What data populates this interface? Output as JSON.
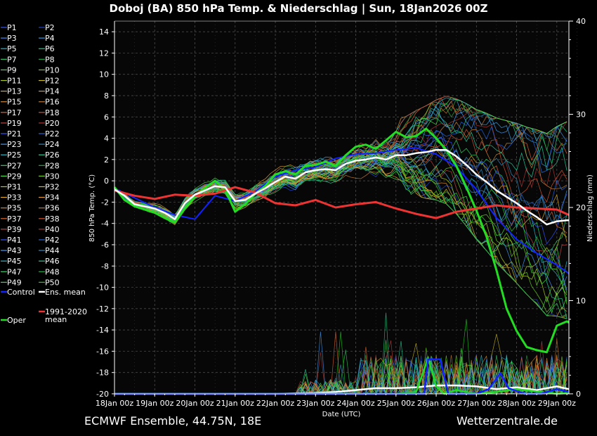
{
  "chart_data": {
    "type": "line",
    "title": "Doboj  (BA)  850 hPa Temp. & Niederschlag | Sun, 18Jan2026 00Z",
    "xlabel": "Date (UTC)",
    "ylabel": "850 hPa Temp. (°C)",
    "y2label": "Niederschlag (mm)",
    "ylim": [
      -20,
      15
    ],
    "y2lim": [
      0,
      40
    ],
    "yticks": [
      -20,
      -18,
      -16,
      -14,
      -12,
      -10,
      -8,
      -6,
      -4,
      -2,
      0,
      2,
      4,
      6,
      8,
      10,
      12,
      14
    ],
    "y2ticks": [
      0,
      10,
      20,
      30,
      40
    ],
    "xlim": [
      0,
      11.3
    ],
    "xticks": [
      {
        "x": 0,
        "label": "18Jan 00z"
      },
      {
        "x": 1,
        "label": "19Jan 00z"
      },
      {
        "x": 2,
        "label": "20Jan 00z"
      },
      {
        "x": 3,
        "label": "21Jan 00z"
      },
      {
        "x": 4,
        "label": "22Jan 00z"
      },
      {
        "x": 5,
        "label": "23Jan 00z"
      },
      {
        "x": 6,
        "label": "24Jan 00z"
      },
      {
        "x": 7,
        "label": "25Jan 00z"
      },
      {
        "x": 8,
        "label": "26Jan 00z"
      },
      {
        "x": 9,
        "label": "27Jan 00z"
      },
      {
        "x": 10,
        "label": "28Jan 00z"
      },
      {
        "x": 11,
        "label": "29Jan 00z"
      }
    ],
    "grid": true,
    "legend_position": "left",
    "legend": [
      {
        "name": "P1",
        "color": "#3355ff"
      },
      {
        "name": "P2",
        "color": "#2244cc"
      },
      {
        "name": "P3",
        "color": "#4488ee"
      },
      {
        "name": "P4",
        "color": "#3399dd"
      },
      {
        "name": "P5",
        "color": "#22bbcc"
      },
      {
        "name": "P6",
        "color": "#22cc88"
      },
      {
        "name": "P7",
        "color": "#33cc66"
      },
      {
        "name": "P8",
        "color": "#22aa44"
      },
      {
        "name": "P9",
        "color": "#44dd44"
      },
      {
        "name": "P10",
        "color": "#66cc22"
      },
      {
        "name": "P11",
        "color": "#aacc22"
      },
      {
        "name": "P12",
        "color": "#ccbb22"
      },
      {
        "name": "P13",
        "color": "#ddaa22"
      },
      {
        "name": "P14",
        "color": "#dd9933"
      },
      {
        "name": "P15",
        "color": "#cc8833"
      },
      {
        "name": "P16",
        "color": "#bb7733"
      },
      {
        "name": "P17",
        "color": "#dd6633"
      },
      {
        "name": "P18",
        "color": "#cc5533"
      },
      {
        "name": "P19",
        "color": "#bb4444"
      },
      {
        "name": "P20",
        "color": "#aa3333"
      },
      {
        "name": "P21",
        "color": "#3355ff"
      },
      {
        "name": "P22",
        "color": "#2266dd"
      },
      {
        "name": "P23",
        "color": "#4499ee"
      },
      {
        "name": "P24",
        "color": "#3388bb"
      },
      {
        "name": "P25",
        "color": "#22bbcc"
      },
      {
        "name": "P26",
        "color": "#22cc99"
      },
      {
        "name": "P27",
        "color": "#33cc66"
      },
      {
        "name": "P28",
        "color": "#22aa44"
      },
      {
        "name": "P29",
        "color": "#44dd44"
      },
      {
        "name": "P30",
        "color": "#66cc22"
      },
      {
        "name": "P31",
        "color": "#aacc22"
      },
      {
        "name": "P32",
        "color": "#ccbb22"
      },
      {
        "name": "P33",
        "color": "#ddaa22"
      },
      {
        "name": "P34",
        "color": "#dd9933"
      },
      {
        "name": "P35",
        "color": "#cc8833"
      },
      {
        "name": "P36",
        "color": "#bb7733"
      },
      {
        "name": "P37",
        "color": "#dd6633"
      },
      {
        "name": "P38",
        "color": "#cc5533"
      },
      {
        "name": "P39",
        "color": "#bb4444"
      },
      {
        "name": "P40",
        "color": "#aa3333"
      },
      {
        "name": "P41",
        "color": "#3355ff"
      },
      {
        "name": "P42",
        "color": "#2266dd"
      },
      {
        "name": "P43",
        "color": "#4499ee"
      },
      {
        "name": "P44",
        "color": "#3388bb"
      },
      {
        "name": "P45",
        "color": "#22bbcc"
      },
      {
        "name": "P46",
        "color": "#22cc99"
      },
      {
        "name": "P47",
        "color": "#33cc66"
      },
      {
        "name": "P48",
        "color": "#22aa44"
      },
      {
        "name": "P49",
        "color": "#44dd44"
      },
      {
        "name": "P50",
        "color": "#22cc22"
      },
      {
        "name": "Control",
        "color": "#1122ff"
      },
      {
        "name": "Ens. mean",
        "color": "#ffffff"
      },
      {
        "name": "Oper",
        "color": "#22dd22"
      },
      {
        "name": "1991-2020\nmean",
        "color": "#ee3333"
      }
    ],
    "series": [
      {
        "name": "Ens. mean",
        "color": "#ffffff",
        "width": 2.5,
        "x": [
          0,
          0.25,
          0.5,
          0.75,
          1,
          1.25,
          1.5,
          1.75,
          2,
          2.25,
          2.5,
          2.75,
          3,
          3.25,
          3.5,
          3.75,
          4,
          4.25,
          4.5,
          4.75,
          5,
          5.25,
          5.5,
          5.75,
          6,
          6.25,
          6.5,
          6.75,
          7,
          7.25,
          7.5,
          7.75,
          8,
          8.25,
          8.5,
          8.75,
          9,
          9.25,
          9.5,
          9.75,
          10,
          10.25,
          10.5,
          10.75,
          11,
          11.25,
          11.3
        ],
        "y": [
          -0.8,
          -1.4,
          -2.2,
          -2.4,
          -2.6,
          -3.0,
          -3.6,
          -2.1,
          -1.3,
          -0.9,
          -0.5,
          -0.6,
          -1.9,
          -1.8,
          -1.2,
          -0.7,
          -0.1,
          0.4,
          0.2,
          0.8,
          1.0,
          1.1,
          1.0,
          1.6,
          1.9,
          2.0,
          2.2,
          2.0,
          2.4,
          2.4,
          2.6,
          2.7,
          2.9,
          2.9,
          2.3,
          1.5,
          0.6,
          -0.1,
          -0.9,
          -1.5,
          -2.1,
          -2.8,
          -3.4,
          -4.1,
          -3.8,
          -3.7,
          -3.7
        ]
      },
      {
        "name": "1991-2020 mean",
        "color": "#ee3333",
        "width": 3,
        "x": [
          0,
          0.5,
          1,
          1.5,
          2,
          2.5,
          3,
          3.5,
          4,
          4.5,
          5,
          5.5,
          6,
          6.5,
          7,
          7.5,
          8,
          8.5,
          9,
          9.5,
          10,
          10.5,
          11,
          11.3
        ],
        "y": [
          -0.9,
          -1.4,
          -1.7,
          -1.3,
          -1.4,
          -1.2,
          -0.6,
          -1.1,
          -2.1,
          -2.3,
          -1.8,
          -2.5,
          -2.2,
          -2.0,
          -2.6,
          -3.1,
          -3.5,
          -2.9,
          -2.6,
          -2.3,
          -2.5,
          -2.6,
          -2.7,
          -3.2
        ]
      },
      {
        "name": "Oper",
        "color": "#22dd22",
        "width": 3,
        "x": [
          0,
          0.25,
          0.5,
          0.75,
          1,
          1.25,
          1.5,
          1.75,
          2,
          2.25,
          2.5,
          2.75,
          3,
          3.25,
          3.5,
          3.75,
          4,
          4.25,
          4.5,
          4.75,
          5,
          5.25,
          5.5,
          5.75,
          6,
          6.25,
          6.5,
          6.75,
          7,
          7.25,
          7.5,
          7.75,
          8,
          8.25,
          8.5,
          8.75,
          9,
          9.25,
          9.5,
          9.75,
          10,
          10.25,
          10.5,
          10.75,
          11,
          11.25,
          11.3
        ],
        "y": [
          -0.6,
          -1.8,
          -2.4,
          -2.7,
          -3.0,
          -3.5,
          -3.9,
          -2.6,
          -1.5,
          -0.7,
          0.0,
          -0.8,
          -2.9,
          -2.2,
          -1.2,
          -0.5,
          0.6,
          0.9,
          0.6,
          1.4,
          1.5,
          1.8,
          1.4,
          2.4,
          3.2,
          3.4,
          3.0,
          3.8,
          4.6,
          4.1,
          4.2,
          4.9,
          4.0,
          2.9,
          1.4,
          -0.6,
          -2.8,
          -5.2,
          -8.4,
          -12.0,
          -14.1,
          -15.6,
          -15.9,
          -16.1,
          -13.6,
          -13.2,
          -13.3
        ]
      },
      {
        "name": "Control",
        "color": "#1122ff",
        "width": 2,
        "x": [
          0,
          0.5,
          1,
          1.5,
          2,
          2.5,
          3,
          3.5,
          4,
          4.5,
          5,
          5.5,
          6,
          6.5,
          7,
          7.5,
          8,
          8.5,
          9,
          9.5,
          10,
          10.5,
          11,
          11.3
        ],
        "y": [
          -0.7,
          -1.6,
          -2.5,
          -3.2,
          -3.6,
          -1.4,
          -1.9,
          -1.0,
          0.4,
          1.0,
          1.3,
          2.1,
          2.5,
          2.6,
          2.9,
          3.1,
          2.5,
          1.3,
          -0.8,
          -3.5,
          -5.5,
          -6.8,
          -7.9,
          -8.7
        ]
      }
    ],
    "precipitation": [
      {
        "name": "Ens. mean",
        "color": "#ffffff",
        "x": [
          0,
          1,
          2,
          3,
          4,
          5,
          5.5,
          6,
          6.5,
          7,
          7.5,
          8,
          8.5,
          9,
          9.5,
          10,
          10.5,
          11,
          11.3
        ],
        "y": [
          0,
          0,
          0,
          0,
          0,
          0.1,
          0.2,
          0.4,
          0.6,
          0.6,
          0.7,
          0.9,
          0.9,
          0.8,
          0.5,
          0.7,
          0.4,
          0.8,
          0.5
        ]
      },
      {
        "name": "Oper",
        "color": "#22dd22",
        "x": [
          0,
          5,
          7,
          7.5,
          7.8,
          8,
          8.2,
          8.5,
          9,
          9.5,
          10,
          11,
          11.3
        ],
        "y": [
          0,
          0,
          0,
          0.2,
          3.8,
          0.8,
          0,
          0.4,
          0,
          0.2,
          0.5,
          0,
          0.1
        ]
      },
      {
        "name": "Control",
        "color": "#1122ff",
        "x": [
          0,
          5,
          7,
          7.7,
          7.8,
          8.1,
          8.3,
          8.6,
          9,
          9.3,
          9.6,
          9.8,
          10.2,
          10.6,
          11,
          11.3
        ],
        "y": [
          0,
          0,
          0,
          0,
          3.7,
          3.7,
          0,
          0,
          0,
          0.5,
          2.2,
          0.6,
          0,
          0,
          0.5,
          0.2
        ]
      }
    ]
  },
  "footer": {
    "left": "ECMWF Ensemble, 44.75N, 18E",
    "right": "Wetterzentrale.de"
  }
}
